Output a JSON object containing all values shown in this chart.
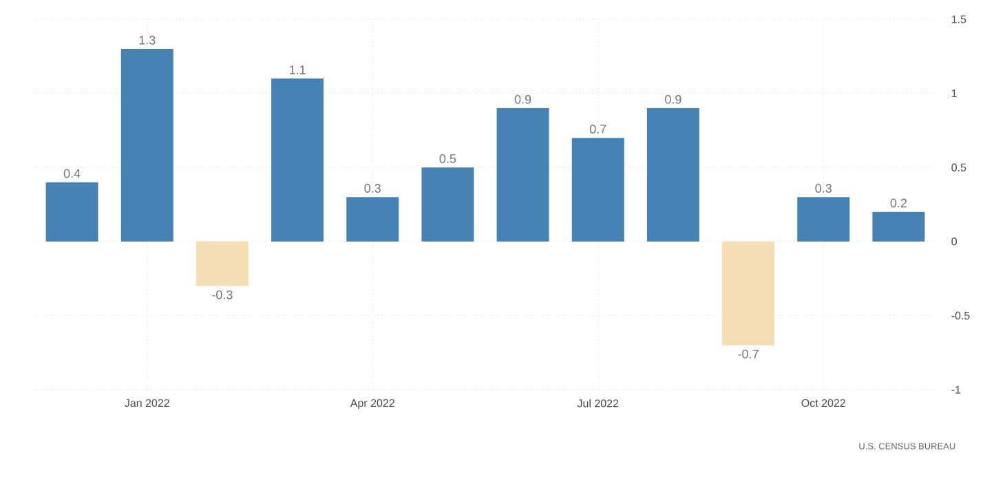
{
  "chart_data": {
    "type": "bar",
    "categories": [
      null,
      "Jan 2022",
      null,
      null,
      "Apr 2022",
      null,
      null,
      "Jul 2022",
      null,
      null,
      "Oct 2022",
      null
    ],
    "values": [
      0.4,
      1.3,
      -0.3,
      1.1,
      0.3,
      0.5,
      0.9,
      0.7,
      0.9,
      -0.7,
      0.3,
      0.2
    ],
    "colors": [
      "#4682b4",
      "#4682b4",
      "#f5deb3",
      "#4682b4",
      "#4682b4",
      "#4682b4",
      "#4682b4",
      "#4682b4",
      "#4682b4",
      "#f5deb3",
      "#4682b4",
      "#4682b4"
    ],
    "ylim": [
      -1,
      1.5
    ],
    "yticks": [
      -1,
      -0.5,
      0,
      0.5,
      1,
      1.5
    ],
    "grid": true,
    "data_labels": true,
    "annotations": [
      "U.S. CENSUS BUREAU"
    ]
  }
}
